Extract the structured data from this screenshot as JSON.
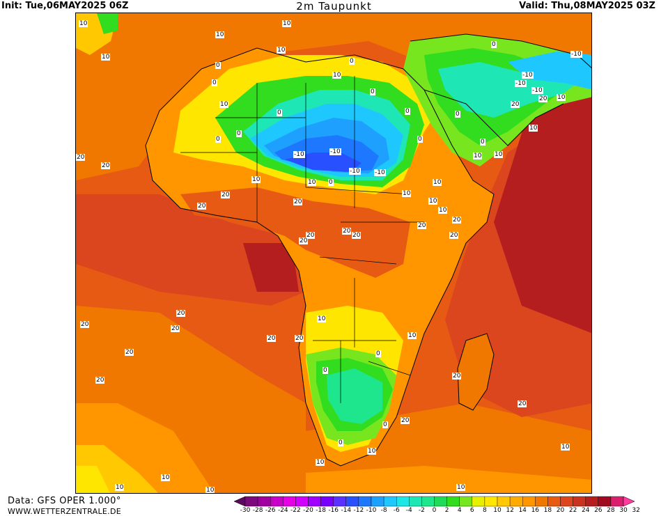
{
  "header": {
    "init": "Init: Tue,06MAY2025 06Z",
    "title": "2m Taupunkt",
    "valid": "Valid: Thu,08MAY2025 03Z"
  },
  "footer": {
    "source": "Data: GFS OPER 1.000°",
    "site": "WWW.WETTERZENTRALE.DE"
  },
  "colorbar": {
    "ticks": [
      "-30",
      "-28",
      "-26",
      "-24",
      "-22",
      "-20",
      "-18",
      "-16",
      "-14",
      "-12",
      "-10",
      "-8",
      "-6",
      "-4",
      "-2",
      "0",
      "2",
      "4",
      "6",
      "8",
      "10",
      "12",
      "14",
      "16",
      "18",
      "20",
      "22",
      "24",
      "26",
      "28",
      "30",
      "32"
    ],
    "colors": [
      "#5a0a5a",
      "#7d0a7d",
      "#a000a0",
      "#c800c8",
      "#e600e6",
      "#d200ff",
      "#a000ff",
      "#7800ff",
      "#5a32ff",
      "#2850ff",
      "#1e78ff",
      "#1ea0ff",
      "#1ec8ff",
      "#1ee6e6",
      "#1ee6b4",
      "#1ee68c",
      "#1edc5a",
      "#32dc1e",
      "#78e61e",
      "#e6f000",
      "#ffe600",
      "#ffc800",
      "#ffaa00",
      "#ff9600",
      "#f07800",
      "#e65a14",
      "#dc461e",
      "#c8321e",
      "#b41e1e",
      "#a00a1e",
      "#dc1e6e",
      "#ff3ca0"
    ]
  },
  "map": {
    "contour_labels": [
      "10",
      "0",
      "-10",
      "20"
    ],
    "colors": {
      "deep_red": "#b41e1e",
      "red": "#dc461e",
      "orange_red": "#e65a14",
      "orange": "#f07800",
      "light_orange": "#ff9600",
      "amber": "#ffaa00",
      "gold": "#ffc800",
      "yellow": "#ffe600",
      "lime": "#78e61e",
      "green": "#32dc1e",
      "teal": "#1ee68c",
      "aqua": "#1ee6b4",
      "cyan": "#1ec8ff",
      "sky": "#1ea0ff",
      "blue": "#1e78ff",
      "deep_blue": "#2850ff"
    }
  }
}
